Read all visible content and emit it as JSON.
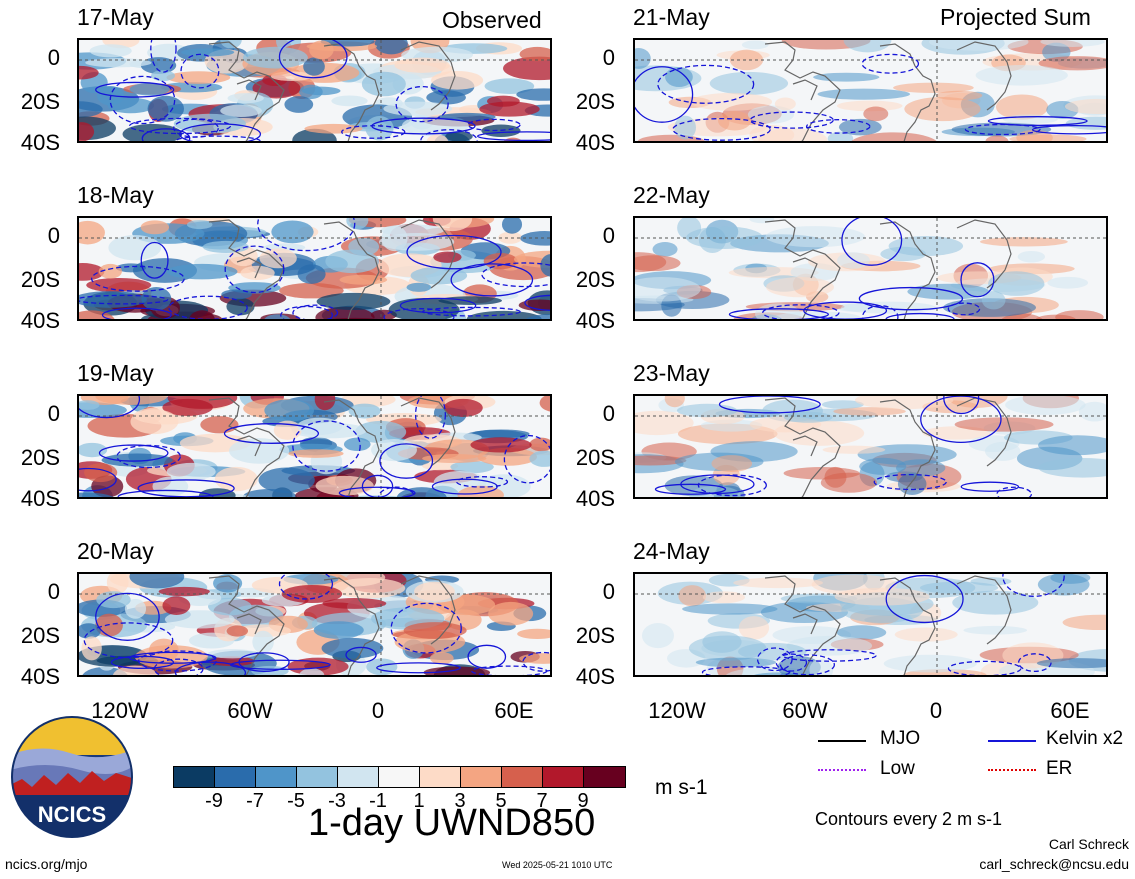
{
  "headers": {
    "left": "Observed",
    "right": "Projected Sum"
  },
  "panels": [
    {
      "date": "17-May",
      "style": "obs"
    },
    {
      "date": "18-May",
      "style": "obs"
    },
    {
      "date": "19-May",
      "style": "obs"
    },
    {
      "date": "20-May",
      "style": "obs"
    },
    {
      "date": "21-May",
      "style": "proj"
    },
    {
      "date": "22-May",
      "style": "proj"
    },
    {
      "date": "23-May",
      "style": "proj"
    },
    {
      "date": "24-May",
      "style": "proj"
    }
  ],
  "lat_labels": [
    "0",
    "20S",
    "40S"
  ],
  "lon_labels": [
    "120W",
    "60W",
    "0",
    "60E"
  ],
  "colorbar": {
    "colors": [
      "#0b3b63",
      "#2a6cac",
      "#4f95c9",
      "#93c3df",
      "#d1e5f0",
      "#f7f7f7",
      "#fddbc7",
      "#f4a582",
      "#d6604d",
      "#b2182b",
      "#67001f"
    ],
    "ticks": [
      "-9",
      "-7",
      "-5",
      "-3",
      "-1",
      "1",
      "3",
      "5",
      "7",
      "9"
    ],
    "units": "m s-1"
  },
  "title": "1-day UWND850",
  "legend": {
    "items": [
      {
        "label": "MJO",
        "color": "#000000",
        "dash": "solid"
      },
      {
        "label": "Kelvin x2",
        "color": "#1515d8",
        "dash": "solid"
      },
      {
        "label": "Low",
        "color": "#a020f0",
        "dash": "dotted"
      },
      {
        "label": "ER",
        "color": "#e00000",
        "dash": "dotted"
      }
    ],
    "note": "Contours every 2 m s-1"
  },
  "credits": {
    "name": "Carl Schreck",
    "email": "carl_schreck@ncsu.edu",
    "url": "ncics.org/mjo",
    "timestamp": "Wed 2025-05-21 1010 UTC"
  },
  "logo_text": "NCICS"
}
